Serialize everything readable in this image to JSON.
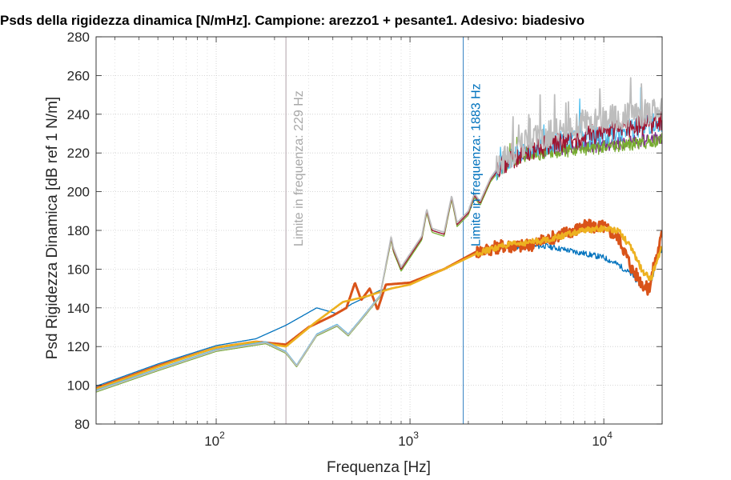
{
  "chart_data": {
    "type": "line",
    "title": "Psds della rigidezza dinamica [N/mHz]. Campione: arezzo1 + pesante1. Adesivo: biadesivo",
    "xlabel": "Frequenza [Hz]",
    "ylabel": "Psd Rigidezza Dinamica [dB ref 1 N/m]",
    "xscale": "log",
    "xlim": [
      24,
      20000
    ],
    "ylim": [
      80,
      280
    ],
    "grid": "on (major and minor)",
    "y_ticks": [
      80,
      100,
      120,
      140,
      160,
      180,
      200,
      220,
      240,
      260,
      280
    ],
    "x_ticks": [
      {
        "value": 100,
        "base": "10",
        "exp": "2"
      },
      {
        "value": 1000,
        "base": "10",
        "exp": "3"
      },
      {
        "value": 10000,
        "base": "10",
        "exp": "4"
      }
    ],
    "vertical_markers": [
      {
        "x": 229,
        "label": "Limite in frequenza: 229 Hz",
        "color": "#b0a0a8",
        "label_color": "#a8a8a8"
      },
      {
        "x": 1883,
        "label": "Limite in frequenza: 1883 Hz",
        "color": "#2f7fc1",
        "label_color": "#0072bd"
      }
    ],
    "series": [
      {
        "color": "#0072bd",
        "points": [
          [
            24,
            99.5
          ],
          [
            50,
            111
          ],
          [
            100,
            120.5
          ],
          [
            160,
            124
          ],
          [
            229,
            131
          ],
          [
            330,
            140
          ],
          [
            420,
            137
          ],
          [
            500,
            142
          ],
          [
            700,
            149
          ],
          [
            1000,
            152
          ],
          [
            1500,
            160
          ],
          [
            2200,
            169
          ],
          [
            3000,
            171
          ],
          [
            5000,
            172
          ],
          [
            8000,
            168
          ],
          [
            10000,
            166
          ],
          [
            12000,
            162
          ],
          [
            14000,
            157
          ],
          [
            16000,
            150
          ],
          [
            17500,
            152
          ],
          [
            19000,
            168
          ],
          [
            20000,
            170
          ]
        ]
      },
      {
        "color": "#d95319",
        "width": 3.0,
        "points": [
          [
            24,
            98.5
          ],
          [
            50,
            110
          ],
          [
            100,
            119.5
          ],
          [
            160,
            122.5
          ],
          [
            229,
            121
          ],
          [
            300,
            130
          ],
          [
            400,
            136
          ],
          [
            470,
            140
          ],
          [
            520,
            153
          ],
          [
            560,
            144
          ],
          [
            620,
            150
          ],
          [
            680,
            139
          ],
          [
            750,
            152
          ],
          [
            1000,
            153
          ],
          [
            1500,
            160
          ],
          [
            2200,
            169
          ],
          [
            3000,
            172
          ],
          [
            4000,
            172
          ],
          [
            5000,
            175
          ],
          [
            6000,
            178
          ],
          [
            8000,
            182
          ],
          [
            10000,
            182
          ],
          [
            12000,
            176
          ],
          [
            14000,
            160
          ],
          [
            16000,
            152
          ],
          [
            17000,
            149
          ],
          [
            18000,
            160
          ],
          [
            20000,
            178
          ]
        ]
      },
      {
        "color": "#edb120",
        "width": 2.6,
        "points": [
          [
            24,
            98
          ],
          [
            50,
            109.5
          ],
          [
            100,
            119.5
          ],
          [
            160,
            122.5
          ],
          [
            229,
            120
          ],
          [
            320,
            132
          ],
          [
            450,
            143
          ],
          [
            600,
            146
          ],
          [
            800,
            150
          ],
          [
            1000,
            152
          ],
          [
            1500,
            160
          ],
          [
            2200,
            168
          ],
          [
            3000,
            172
          ],
          [
            5000,
            175
          ],
          [
            8000,
            180
          ],
          [
            10000,
            181
          ],
          [
            12000,
            180
          ],
          [
            14000,
            170
          ],
          [
            16000,
            158
          ],
          [
            17500,
            155
          ],
          [
            19000,
            166
          ],
          [
            20000,
            172
          ]
        ]
      },
      {
        "color": "#7e2f8e",
        "points": [
          [
            24,
            97
          ],
          [
            50,
            108
          ],
          [
            100,
            118
          ],
          [
            180,
            122
          ],
          [
            229,
            117
          ],
          [
            260,
            110
          ],
          [
            330,
            126
          ],
          [
            420,
            131
          ],
          [
            480,
            126
          ],
          [
            560,
            134
          ],
          [
            700,
            146
          ],
          [
            800,
            176
          ],
          [
            820,
            170
          ],
          [
            900,
            160
          ],
          [
            1150,
            176
          ],
          [
            1220,
            190
          ],
          [
            1300,
            180
          ],
          [
            1500,
            178
          ],
          [
            1640,
            197
          ],
          [
            1750,
            183
          ],
          [
            2000,
            189
          ],
          [
            2150,
            198
          ],
          [
            2300,
            194
          ],
          [
            2600,
            206
          ],
          [
            3000,
            214
          ],
          [
            4000,
            220
          ],
          [
            6000,
            222
          ],
          [
            10000,
            224
          ],
          [
            15000,
            226
          ],
          [
            20000,
            228
          ]
        ]
      },
      {
        "color": "#77ac30",
        "points": [
          [
            24,
            96.5
          ],
          [
            50,
            107.5
          ],
          [
            100,
            117.5
          ],
          [
            180,
            121.5
          ],
          [
            229,
            116.5
          ],
          [
            260,
            109.5
          ],
          [
            330,
            125.5
          ],
          [
            420,
            130.5
          ],
          [
            480,
            125.5
          ],
          [
            560,
            133.5
          ],
          [
            700,
            145.5
          ],
          [
            800,
            175
          ],
          [
            820,
            169
          ],
          [
            900,
            159
          ],
          [
            1150,
            175
          ],
          [
            1220,
            189
          ],
          [
            1300,
            179
          ],
          [
            1500,
            177
          ],
          [
            1640,
            196
          ],
          [
            1750,
            182
          ],
          [
            2000,
            188
          ],
          [
            2150,
            197
          ],
          [
            2300,
            193
          ],
          [
            2600,
            205
          ],
          [
            3000,
            213
          ],
          [
            4000,
            219
          ],
          [
            6000,
            221
          ],
          [
            10000,
            223
          ],
          [
            15000,
            225
          ],
          [
            20000,
            227
          ]
        ]
      },
      {
        "color": "#4dbeee",
        "points": [
          [
            24,
            97.5
          ],
          [
            50,
            108.5
          ],
          [
            100,
            118.5
          ],
          [
            180,
            122.5
          ],
          [
            229,
            117.5
          ],
          [
            260,
            110.5
          ],
          [
            330,
            126.5
          ],
          [
            420,
            131.5
          ],
          [
            480,
            126.5
          ],
          [
            560,
            134.5
          ],
          [
            700,
            146.5
          ],
          [
            800,
            177
          ],
          [
            820,
            171
          ],
          [
            900,
            161
          ],
          [
            1150,
            177
          ],
          [
            1220,
            191
          ],
          [
            1300,
            181
          ],
          [
            1500,
            179
          ],
          [
            1640,
            198
          ],
          [
            1750,
            184
          ],
          [
            2000,
            190
          ],
          [
            2150,
            199
          ],
          [
            2300,
            195
          ],
          [
            2600,
            207
          ],
          [
            3000,
            215
          ],
          [
            4000,
            222
          ],
          [
            6000,
            226
          ],
          [
            10000,
            230
          ],
          [
            15000,
            233
          ],
          [
            20000,
            236
          ]
        ]
      },
      {
        "color": "#a2142f",
        "points": [
          [
            24,
            97
          ],
          [
            50,
            108
          ],
          [
            100,
            118
          ],
          [
            180,
            122
          ],
          [
            229,
            117
          ],
          [
            260,
            110
          ],
          [
            330,
            126
          ],
          [
            420,
            131
          ],
          [
            480,
            126
          ],
          [
            560,
            134
          ],
          [
            700,
            146
          ],
          [
            800,
            176
          ],
          [
            820,
            170
          ],
          [
            900,
            160
          ],
          [
            1150,
            176
          ],
          [
            1220,
            190
          ],
          [
            1300,
            180
          ],
          [
            1500,
            178
          ],
          [
            1640,
            197
          ],
          [
            1750,
            183
          ],
          [
            2000,
            189
          ],
          [
            2150,
            198
          ],
          [
            2300,
            194
          ],
          [
            2600,
            206
          ],
          [
            3000,
            214
          ],
          [
            4000,
            221
          ],
          [
            6000,
            226
          ],
          [
            10000,
            231
          ],
          [
            15000,
            234
          ],
          [
            20000,
            236
          ]
        ]
      },
      {
        "color": "#bdbdbd",
        "width": 1.8,
        "points": [
          [
            24,
            97
          ],
          [
            50,
            108
          ],
          [
            100,
            118
          ],
          [
            180,
            122
          ],
          [
            229,
            117
          ],
          [
            260,
            110
          ],
          [
            330,
            126
          ],
          [
            420,
            131
          ],
          [
            480,
            126
          ],
          [
            560,
            134
          ],
          [
            700,
            146
          ],
          [
            800,
            177
          ],
          [
            820,
            171
          ],
          [
            900,
            161
          ],
          [
            1150,
            177
          ],
          [
            1220,
            191
          ],
          [
            1300,
            181
          ],
          [
            1500,
            179
          ],
          [
            1640,
            198
          ],
          [
            1750,
            184
          ],
          [
            2000,
            190
          ],
          [
            2150,
            199
          ],
          [
            2300,
            195
          ],
          [
            2600,
            207
          ],
          [
            3000,
            216
          ],
          [
            4000,
            226
          ],
          [
            6000,
            232
          ],
          [
            10000,
            238
          ],
          [
            15000,
            240
          ],
          [
            20000,
            242
          ]
        ]
      }
    ]
  }
}
